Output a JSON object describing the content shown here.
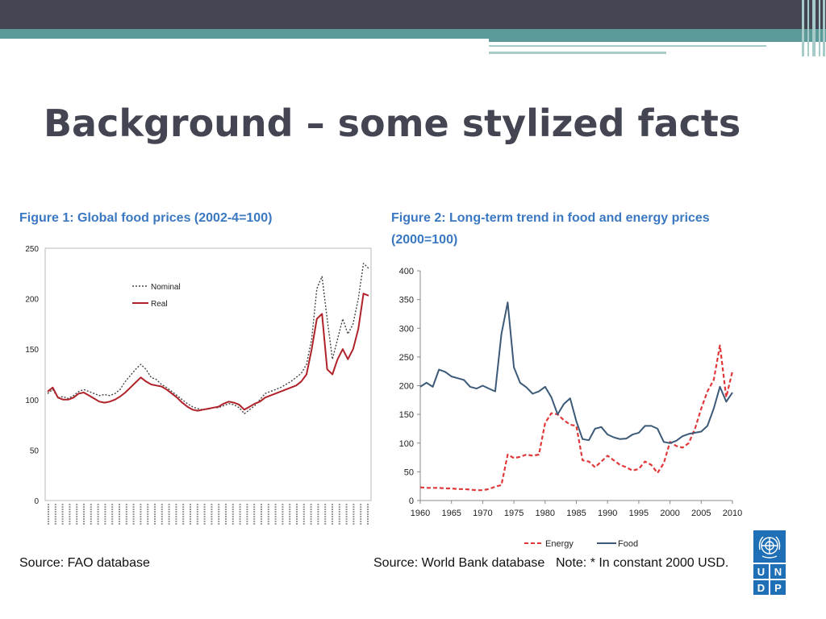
{
  "slide": {
    "title": "Background – some stylized facts"
  },
  "figure1": {
    "caption": "Figure 1: Global food prices (2002-4=100)",
    "source": "Source: FAO database"
  },
  "figure2": {
    "caption_line1": "Figure 2: Long-term trend in food and energy prices",
    "caption_line2": "(2000=100)",
    "source": "Source: World Bank database",
    "note": "Note: * In constant 2000 USD."
  },
  "logo": {
    "letters": [
      "U",
      "N",
      "D",
      "P"
    ]
  },
  "chart_data": [
    {
      "type": "line",
      "title": "Figure 1: Global food prices (2002-4=100)",
      "ylim": [
        0,
        250
      ],
      "yticks": [
        0,
        50,
        100,
        150,
        200,
        250
      ],
      "grid": false,
      "legend_position": "top-left",
      "x_tick_labels_legible": false,
      "colors": {
        "Nominal": "#444444",
        "Real": "#b0222a"
      },
      "series": [
        {
          "name": "Nominal",
          "style": "dotted",
          "values": [
            106,
            110,
            102,
            103,
            101,
            104,
            108,
            110,
            108,
            106,
            104,
            105,
            104,
            106,
            110,
            118,
            124,
            130,
            135,
            130,
            122,
            120,
            115,
            112,
            108,
            104,
            100,
            96,
            93,
            91,
            90,
            91,
            92,
            92,
            94,
            96,
            95,
            92,
            86,
            90,
            94,
            100,
            106,
            108,
            110,
            112,
            115,
            118,
            122,
            126,
            135,
            160,
            210,
            222,
            180,
            140,
            160,
            180,
            165,
            175,
            200,
            235,
            230
          ]
        },
        {
          "name": "Real",
          "style": "solid",
          "values": [
            108,
            112,
            102,
            100,
            100,
            102,
            106,
            107,
            104,
            101,
            98,
            97,
            98,
            100,
            103,
            107,
            112,
            117,
            122,
            118,
            115,
            114,
            113,
            110,
            106,
            102,
            97,
            93,
            90,
            89,
            90,
            91,
            92,
            93,
            96,
            98,
            97,
            95,
            90,
            93,
            96,
            98,
            102,
            104,
            106,
            108,
            110,
            112,
            114,
            118,
            125,
            150,
            180,
            185,
            130,
            125,
            140,
            150,
            140,
            150,
            170,
            205,
            203
          ]
        }
      ]
    },
    {
      "type": "line",
      "title": "Figure 2: Long-term trend in food and energy prices (2000=100)",
      "xlim": [
        1960,
        2010
      ],
      "ylim": [
        0,
        400
      ],
      "xticks": [
        1960,
        1965,
        1970,
        1975,
        1980,
        1985,
        1990,
        1995,
        2000,
        2005,
        2010
      ],
      "yticks": [
        0,
        50,
        100,
        150,
        200,
        250,
        300,
        350,
        400
      ],
      "grid": false,
      "legend_position": "bottom",
      "colors": {
        "Energy": "#e0383a",
        "Food": "#3c5a78"
      },
      "series": [
        {
          "name": "Energy",
          "style": "dashed",
          "x": [
            1960,
            1961,
            1962,
            1963,
            1964,
            1965,
            1966,
            1967,
            1968,
            1969,
            1970,
            1971,
            1972,
            1973,
            1974,
            1975,
            1976,
            1977,
            1978,
            1979,
            1980,
            1981,
            1982,
            1983,
            1984,
            1985,
            1986,
            1987,
            1988,
            1989,
            1990,
            1991,
            1992,
            1993,
            1994,
            1995,
            1996,
            1997,
            1998,
            1999,
            2000,
            2001,
            2002,
            2003,
            2004,
            2005,
            2006,
            2007,
            2008,
            2009,
            2010
          ],
          "y": [
            23,
            22,
            22,
            22,
            21,
            21,
            20,
            20,
            19,
            18,
            18,
            20,
            24,
            27,
            80,
            74,
            76,
            80,
            78,
            80,
            135,
            152,
            150,
            140,
            132,
            130,
            70,
            68,
            58,
            68,
            78,
            70,
            62,
            58,
            52,
            55,
            68,
            62,
            48,
            65,
            102,
            95,
            92,
            100,
            125,
            160,
            190,
            210,
            270,
            180,
            225
          ]
        },
        {
          "name": "Food",
          "style": "solid",
          "x": [
            1960,
            1961,
            1962,
            1963,
            1964,
            1965,
            1966,
            1967,
            1968,
            1969,
            1970,
            1971,
            1972,
            1973,
            1974,
            1975,
            1976,
            1977,
            1978,
            1979,
            1980,
            1981,
            1982,
            1983,
            1984,
            1985,
            1986,
            1987,
            1988,
            1989,
            1990,
            1991,
            1992,
            1993,
            1994,
            1995,
            1996,
            1997,
            1998,
            1999,
            2000,
            2001,
            2002,
            2003,
            2004,
            2005,
            2006,
            2007,
            2008,
            2009,
            2010
          ],
          "y": [
            198,
            205,
            198,
            228,
            224,
            216,
            213,
            210,
            198,
            195,
            200,
            195,
            190,
            290,
            345,
            232,
            205,
            197,
            186,
            190,
            198,
            180,
            150,
            168,
            178,
            138,
            107,
            105,
            125,
            128,
            115,
            110,
            107,
            108,
            115,
            118,
            130,
            130,
            125,
            102,
            100,
            104,
            112,
            116,
            118,
            120,
            130,
            160,
            198,
            172,
            188
          ]
        }
      ]
    }
  ]
}
